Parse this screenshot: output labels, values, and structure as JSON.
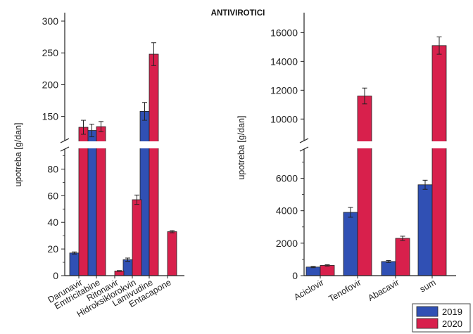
{
  "title": "ANTIVIROTICI",
  "colors": {
    "2019": "#3050b4",
    "2020": "#d8204c",
    "frame": "#222222"
  },
  "legend": {
    "items": [
      "2019",
      "2020"
    ],
    "placement": "bottom-right"
  },
  "chart_data": [
    {
      "type": "bar",
      "panel": "left",
      "ylabel": "upotreba [g/dan]",
      "broken_axis": {
        "lower": [
          0,
          95
        ],
        "upper": [
          112,
          300
        ]
      },
      "yticks_lower": [
        0,
        20,
        40,
        60,
        80
      ],
      "yticks_upper": [
        150,
        200,
        250,
        300
      ],
      "categories": [
        "Darunavir",
        "Emtricitabine",
        "Ritonavir",
        "Hidroksiklorokvin",
        "Lamivudine",
        "Entacapone"
      ],
      "series": [
        {
          "name": "2019",
          "values": [
            17,
            128,
            null,
            12,
            158,
            null
          ],
          "errors": [
            0.8,
            10,
            null,
            1.2,
            14,
            null
          ]
        },
        {
          "name": "2020",
          "values": [
            133,
            134,
            3.5,
            57,
            248,
            33
          ],
          "errors": [
            11,
            8,
            0.3,
            3.5,
            18,
            0.8
          ]
        }
      ]
    },
    {
      "type": "bar",
      "panel": "right",
      "ylabel": "upotreba [g/dan]",
      "broken_axis": {
        "lower": [
          0,
          7800
        ],
        "upper": [
          8500,
          16800
        ]
      },
      "yticks_lower": [
        0,
        2000,
        4000,
        6000
      ],
      "yticks_upper": [
        10000,
        12000,
        14000,
        16000
      ],
      "categories": [
        "Aciclovir",
        "Tenofovir",
        "Abacavir",
        "sum"
      ],
      "series": [
        {
          "name": "2019",
          "values": [
            530,
            3900,
            870,
            5600
          ],
          "errors": [
            40,
            300,
            60,
            280
          ]
        },
        {
          "name": "2020",
          "values": [
            630,
            11600,
            2300,
            15100
          ],
          "errors": [
            40,
            550,
            130,
            600
          ]
        }
      ]
    }
  ]
}
